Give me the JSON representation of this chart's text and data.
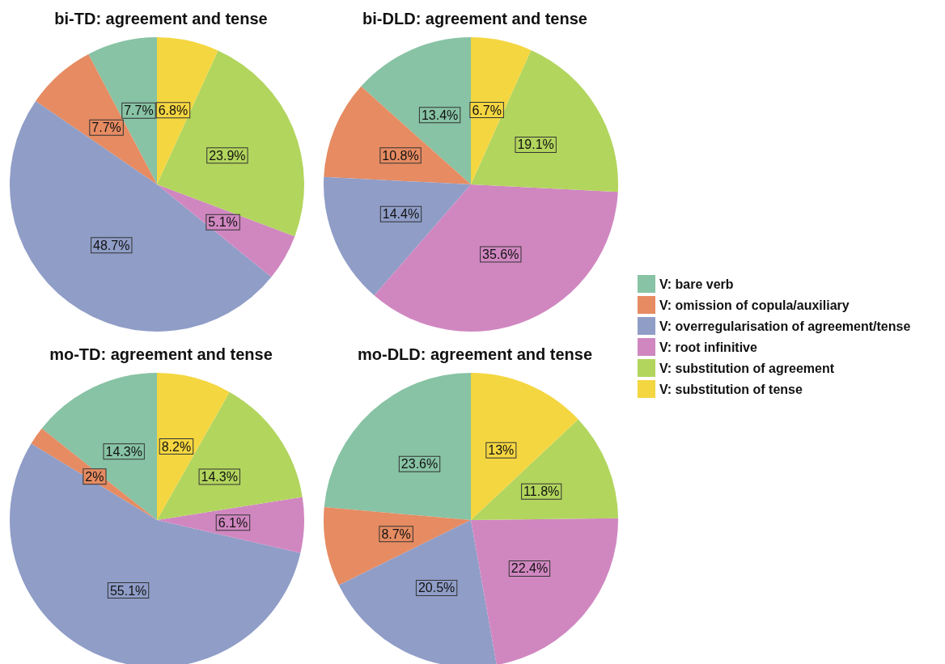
{
  "chart_data": [
    {
      "type": "pie",
      "title": "bi-TD: agreement and tense",
      "categories": [
        null,
        null,
        null,
        null,
        null,
        null
      ],
      "values": [
        7.7,
        7.7,
        48.7,
        5.1,
        23.9,
        6.8
      ],
      "value_labels": [
        "7.7%",
        "7.7%",
        "48.7%",
        "5.1%",
        "23.9%",
        "6.8%"
      ],
      "colors": [
        "#87c3a4",
        "#e68b62",
        "#8f9dc7",
        "#d087c0",
        "#b2d55d",
        "#f4d641"
      ]
    },
    {
      "type": "pie",
      "title": "bi-DLD: agreement and tense",
      "categories": [
        "V: bare verb",
        "V: omission of copula/auxiliary",
        "V: overregularisation of agreement/tense",
        "V: root infinitive",
        "V: substitution of agreement",
        "V: substitution of tense"
      ],
      "values": [
        13.4,
        10.8,
        14.4,
        35.6,
        19.1,
        6.7
      ],
      "value_labels": [
        "13.4%",
        "10.8%",
        "14.4%",
        "35.6%",
        "19.1%",
        "6.7%"
      ],
      "colors": [
        "#87c3a4",
        "#e68b62",
        "#8f9dc7",
        "#d087c0",
        "#b2d55d",
        "#f4d641"
      ],
      "legend": "right"
    },
    {
      "type": "pie",
      "title": "mo-TD: agreement and tense",
      "categories": [
        null,
        null,
        null,
        null,
        null,
        null
      ],
      "values": [
        14.3,
        2,
        55.1,
        6.1,
        14.3,
        8.2
      ],
      "value_labels": [
        "14.3%",
        "2%",
        "55.1%",
        "6.1%",
        "14.3%",
        "8.2%"
      ],
      "colors": [
        "#87c3a4",
        "#e68b62",
        "#8f9dc7",
        "#d087c0",
        "#b2d55d",
        "#f4d641"
      ]
    },
    {
      "type": "pie",
      "title": "mo-DLD: agreement and tense",
      "categories": [
        null,
        null,
        null,
        null,
        null,
        null
      ],
      "values": [
        23.6,
        8.7,
        20.5,
        22.4,
        11.8,
        13
      ],
      "value_labels": [
        "23.6%",
        "8.7%",
        "20.5%",
        "22.4%",
        "11.8%",
        "13%"
      ],
      "colors": [
        "#87c3a4",
        "#e68b62",
        "#8f9dc7",
        "#d087c0",
        "#b2d55d",
        "#f4d641"
      ]
    }
  ]
}
